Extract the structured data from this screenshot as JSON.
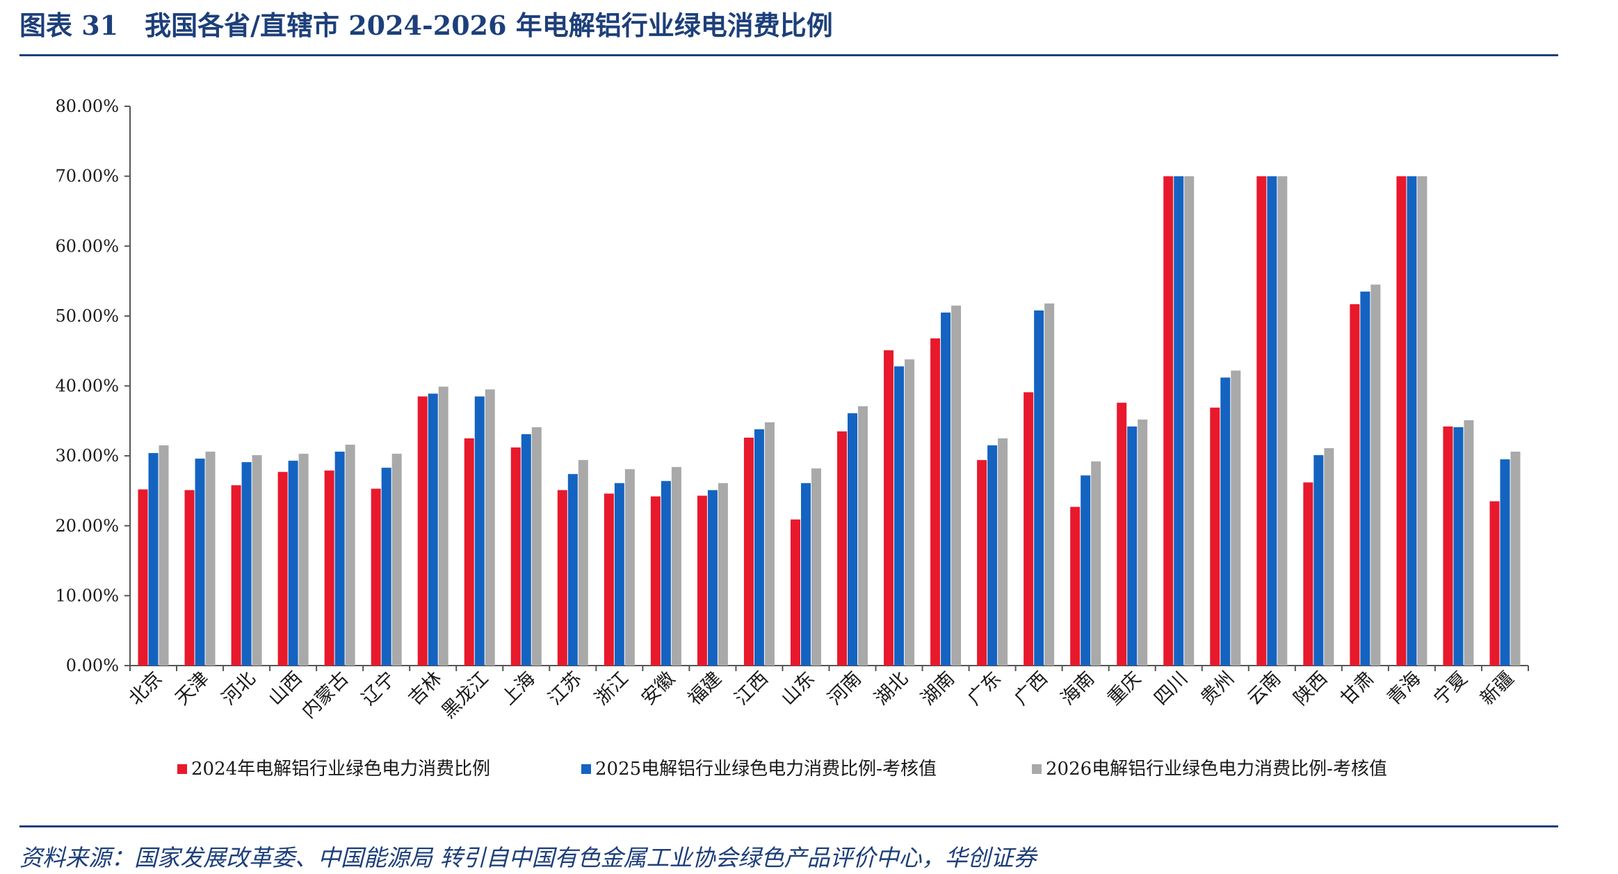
{
  "header": {
    "title": "图表 31　我国各省/直辖市 2024-2026 年电解铝行业绿电消费比例"
  },
  "footer": {
    "source": "资料来源：国家发展改革委、中国能源局 转引自中国有色金属工业协会绿色产品评价中心，华创证券"
  },
  "colors": {
    "series_2024": "#e8192c",
    "series_2025": "#1463c1",
    "series_2026": "#a9a9a9",
    "accent": "#1d3f7a"
  },
  "chart_data": {
    "type": "bar",
    "title": "",
    "xlabel": "",
    "ylabel": "",
    "ylim": [
      0,
      0.8
    ],
    "y_ticks": [
      "0.00%",
      "10.00%",
      "20.00%",
      "30.00%",
      "40.00%",
      "50.00%",
      "60.00%",
      "70.00%",
      "80.00%"
    ],
    "y_tick_values": [
      0,
      0.1,
      0.2,
      0.3,
      0.4,
      0.5,
      0.6,
      0.7,
      0.8
    ],
    "grid": false,
    "legend_position": "bottom",
    "categories": [
      "北京",
      "天津",
      "河北",
      "山西",
      "内蒙古",
      "辽宁",
      "吉林",
      "黑龙江",
      "上海",
      "江苏",
      "浙江",
      "安徽",
      "福建",
      "江西",
      "山东",
      "河南",
      "湖北",
      "湖南",
      "广东",
      "广西",
      "海南",
      "重庆",
      "四川",
      "贵州",
      "云南",
      "陕西",
      "甘肃",
      "青海",
      "宁夏",
      "新疆"
    ],
    "series": [
      {
        "name": "2024年电解铝行业绿色电力消费比例",
        "values": [
          0.252,
          0.251,
          0.258,
          0.277,
          0.279,
          0.253,
          0.385,
          0.325,
          0.312,
          0.251,
          0.246,
          0.242,
          0.243,
          0.326,
          0.209,
          0.335,
          0.451,
          0.468,
          0.294,
          0.391,
          0.227,
          0.376,
          0.7,
          0.369,
          0.7,
          0.262,
          0.517,
          0.7,
          0.342,
          0.235
        ]
      },
      {
        "name": "2025电解铝行业绿色电力消费比例-考核值",
        "values": [
          0.304,
          0.296,
          0.291,
          0.293,
          0.306,
          0.283,
          0.389,
          0.385,
          0.331,
          0.274,
          0.261,
          0.264,
          0.251,
          0.338,
          0.261,
          0.361,
          0.428,
          0.505,
          0.315,
          0.508,
          0.272,
          0.342,
          0.7,
          0.412,
          0.7,
          0.301,
          0.535,
          0.7,
          0.341,
          0.295
        ]
      },
      {
        "name": "2026电解铝行业绿色电力消费比例-考核值",
        "values": [
          0.315,
          0.306,
          0.301,
          0.303,
          0.316,
          0.303,
          0.399,
          0.395,
          0.341,
          0.294,
          0.281,
          0.284,
          0.261,
          0.348,
          0.282,
          0.371,
          0.438,
          0.515,
          0.325,
          0.518,
          0.292,
          0.352,
          0.7,
          0.422,
          0.7,
          0.311,
          0.545,
          0.7,
          0.351,
          0.306
        ]
      }
    ]
  }
}
